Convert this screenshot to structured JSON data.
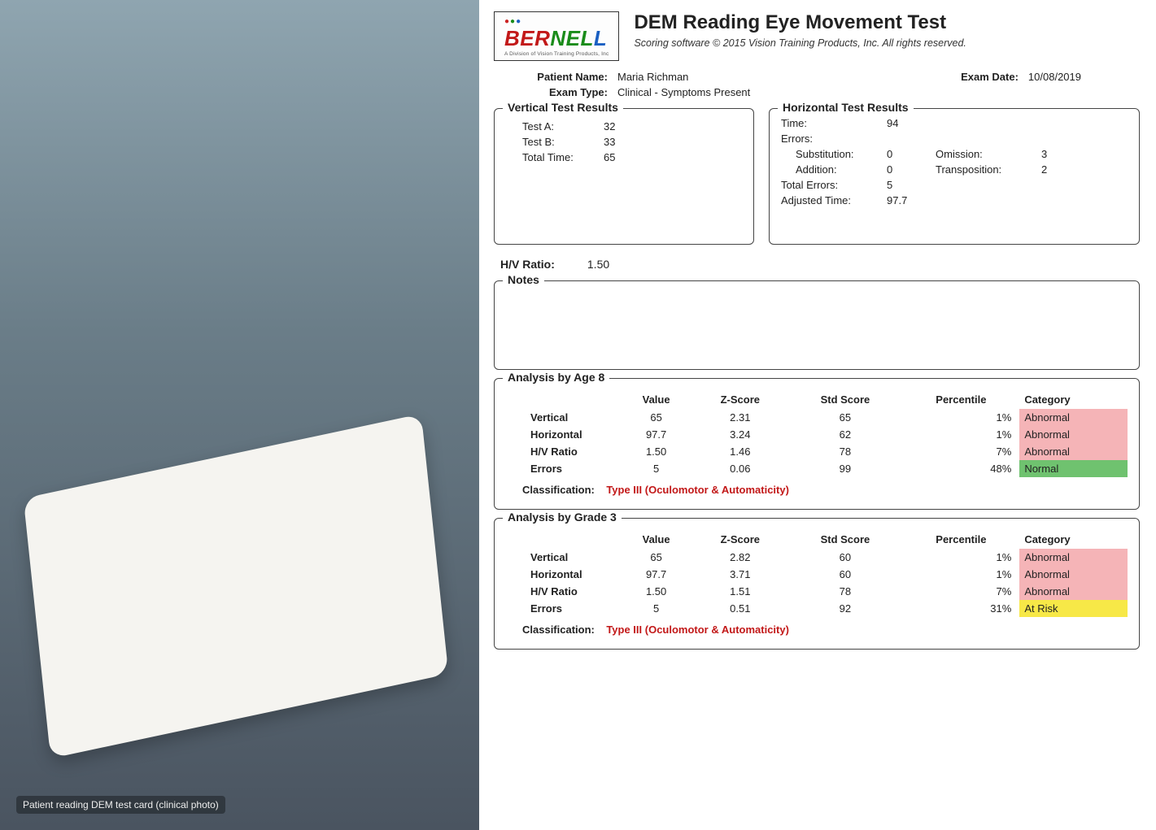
{
  "colors": {
    "abnormal_bg": "#f5b4b7",
    "normal_bg": "#6fc26f",
    "atrisk_bg": "#f7e847",
    "classification_text": "#c21818",
    "border": "#444444",
    "background": "#ffffff"
  },
  "logo": {
    "brand_ber": "BER",
    "brand_ber_color": "#c21818",
    "brand_nel": "NEL",
    "brand_nel_color": "#1a8c1a",
    "brand_l": "L",
    "brand_l_color": "#1a5fc2",
    "tagline": "A Division of Vision Training Products, Inc"
  },
  "header": {
    "title": "DEM Reading Eye Movement Test",
    "subtitle": "Scoring software © 2015 Vision Training Products, Inc. All rights reserved."
  },
  "patient": {
    "name_label": "Patient Name:",
    "name_value": "Maria Richman",
    "exam_date_label": "Exam Date:",
    "exam_date_value": "10/08/2019",
    "exam_type_label": "Exam Type:",
    "exam_type_value": "Clinical - Symptoms Present"
  },
  "vertical": {
    "legend": "Vertical Test Results",
    "rows": [
      {
        "label": "Test A:",
        "value": "32"
      },
      {
        "label": "Test B:",
        "value": "33"
      },
      {
        "label": "Total Time:",
        "value": "65"
      }
    ]
  },
  "horizontal": {
    "legend": "Horizontal Test Results",
    "time_label": "Time:",
    "time_value": "94",
    "errors_label": "Errors:",
    "sub_label": "Substitution:",
    "sub_value": "0",
    "omi_label": "Omission:",
    "omi_value": "3",
    "add_label": "Addition:",
    "add_value": "0",
    "tra_label": "Transposition:",
    "tra_value": "2",
    "totalerr_label": "Total Errors:",
    "totalerr_value": "5",
    "adjtime_label": "Adjusted Time:",
    "adjtime_value": "97.7"
  },
  "hv": {
    "label": "H/V Ratio:",
    "value": "1.50"
  },
  "notes": {
    "legend": "Notes",
    "content": ""
  },
  "analysis_headers": [
    "",
    "Value",
    "Z-Score",
    "Std Score",
    "Percentile",
    "Category"
  ],
  "analysis_age": {
    "legend": "Analysis by Age 8",
    "rows": [
      {
        "label": "Vertical",
        "value": "65",
        "z": "2.31",
        "std": "65",
        "pct": "1%",
        "cat": "Abnormal",
        "cat_class": "cat-abnormal"
      },
      {
        "label": "Horizontal",
        "value": "97.7",
        "z": "3.24",
        "std": "62",
        "pct": "1%",
        "cat": "Abnormal",
        "cat_class": "cat-abnormal"
      },
      {
        "label": "H/V Ratio",
        "value": "1.50",
        "z": "1.46",
        "std": "78",
        "pct": "7%",
        "cat": "Abnormal",
        "cat_class": "cat-abnormal"
      },
      {
        "label": "Errors",
        "value": "5",
        "z": "0.06",
        "std": "99",
        "pct": "48%",
        "cat": "Normal",
        "cat_class": "cat-normal"
      }
    ],
    "classification_label": "Classification:",
    "classification_value": "Type III (Oculomotor & Automaticity)"
  },
  "analysis_grade": {
    "legend": "Analysis by Grade 3",
    "rows": [
      {
        "label": "Vertical",
        "value": "65",
        "z": "2.82",
        "std": "60",
        "pct": "1%",
        "cat": "Abnormal",
        "cat_class": "cat-abnormal"
      },
      {
        "label": "Horizontal",
        "value": "97.7",
        "z": "3.71",
        "std": "60",
        "pct": "1%",
        "cat": "Abnormal",
        "cat_class": "cat-abnormal"
      },
      {
        "label": "H/V Ratio",
        "value": "1.50",
        "z": "1.51",
        "std": "78",
        "pct": "7%",
        "cat": "Abnormal",
        "cat_class": "cat-abnormal"
      },
      {
        "label": "Errors",
        "value": "5",
        "z": "0.51",
        "std": "92",
        "pct": "31%",
        "cat": "At Risk",
        "cat_class": "cat-atrisk"
      }
    ],
    "classification_label": "Classification:",
    "classification_value": "Type III (Oculomotor & Automaticity)"
  },
  "photo_caption": "Patient reading DEM test card (clinical photo)"
}
